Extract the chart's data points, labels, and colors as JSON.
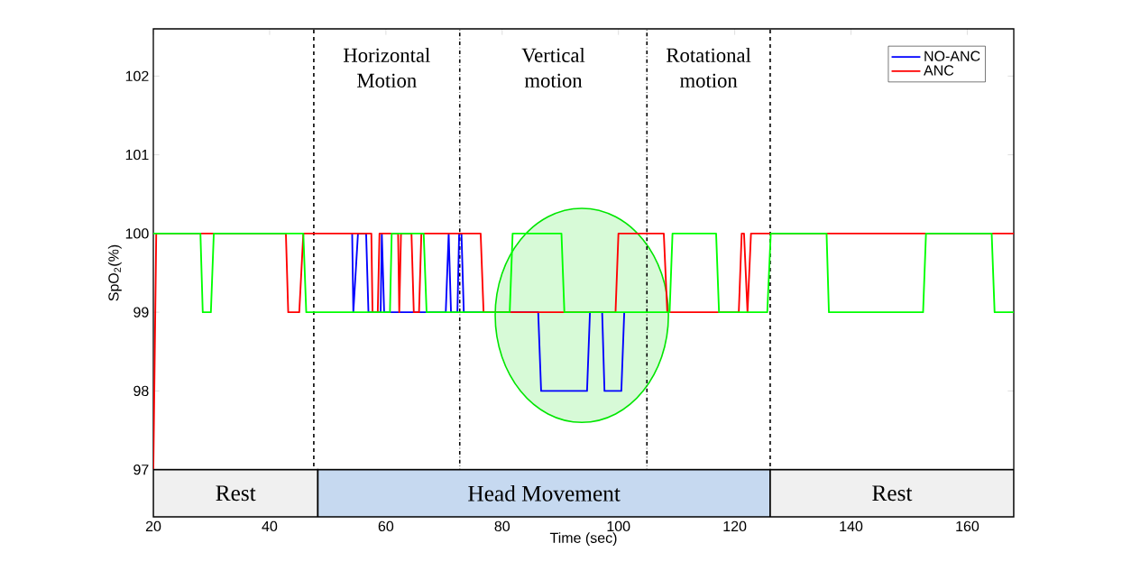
{
  "chart_data": {
    "type": "line",
    "xlabel": "Time (sec)",
    "ylabel": "SpO$_{2}$(%)",
    "xlim": [
      20,
      168
    ],
    "ylim": [
      96.4,
      102.6
    ],
    "xticks": [
      20,
      40,
      60,
      80,
      100,
      120,
      140,
      160
    ],
    "yticks": [
      97,
      98,
      99,
      100,
      101,
      102
    ],
    "grid": false,
    "legend": "top right",
    "marker": "none",
    "line_style": "solid",
    "series": [
      {
        "name": "NO-ANC",
        "color": "#0000ff",
        "x": [
          54.2,
          54.4,
          55.2,
          56.6,
          57.0,
          59.1,
          59.3,
          59.7,
          70.3,
          70.8,
          71.2,
          72.3,
          72.6,
          73.0,
          73.4,
          86.2,
          86.7,
          94.6,
          95.1,
          97.2,
          97.6,
          100.5,
          101.0
        ],
        "values": [
          100,
          99,
          100,
          100,
          99,
          99,
          100,
          99,
          99,
          100,
          99,
          99,
          100,
          100,
          99,
          99,
          98,
          98,
          99,
          99,
          98,
          98,
          99
        ]
      },
      {
        "name": "ANC",
        "color": "#ff0000",
        "x": [
          20,
          20.5,
          42.8,
          43.2,
          45.1,
          45.8,
          57.5,
          57.7,
          58.6,
          58.9,
          62.1,
          62.3,
          62.6,
          64.4,
          64.8,
          65.7,
          66.1,
          76.3,
          76.8,
          99.5,
          100.0,
          107.8,
          108.4,
          120.7,
          121.2,
          121.6,
          122.2,
          122.8,
          168
        ],
        "values": [
          97,
          100,
          100,
          99,
          99,
          100,
          100,
          99,
          99,
          100,
          100,
          99,
          100,
          100,
          99,
          99,
          100,
          100,
          99,
          99,
          100,
          100,
          99,
          99,
          100,
          100,
          99,
          100,
          100
        ]
      },
      {
        "color": "#00ff00",
        "x": [
          20,
          28.1,
          28.5,
          29.9,
          30.4,
          45.8,
          46.3,
          60.7,
          61.0,
          66.5,
          67.0,
          81.3,
          81.8,
          90.2,
          90.7,
          108.8,
          109.3,
          116.8,
          117.3,
          125.6,
          126.2,
          135.8,
          136.2,
          152.4,
          152.9,
          164.2,
          164.7,
          168
        ],
        "values": [
          100,
          100,
          99,
          99,
          100,
          100,
          99,
          99,
          100,
          100,
          99,
          99,
          100,
          100,
          99,
          99,
          100,
          100,
          99,
          99,
          100,
          100,
          99,
          99,
          100,
          100,
          99,
          99
        ]
      }
    ],
    "ref_lines": [
      {
        "axis": "x",
        "value": 47.6,
        "line_style": "dashed",
        "color": "#000000"
      },
      {
        "axis": "x",
        "value": 72.7,
        "line_style": "dashdot",
        "color": "#000000"
      },
      {
        "axis": "x",
        "value": 104.9,
        "line_style": "dashdot",
        "color": "#000000"
      },
      {
        "axis": "x",
        "value": 126.1,
        "line_style": "dashed",
        "color": "#000000"
      }
    ],
    "bands": [
      {
        "axis": "x",
        "from": 20,
        "to": 48.3,
        "label": "Rest",
        "color": "#f0f0f0"
      },
      {
        "axis": "x",
        "from": 48.3,
        "to": 126.1,
        "label": "Head Movement",
        "color": "#c6d9f0"
      },
      {
        "axis": "x",
        "from": 126.1,
        "to": 168,
        "label": "Rest",
        "color": "#f0f0f0"
      }
    ],
    "annotations": [
      "Horizontal Motion",
      "Vertical motion",
      "Rotational motion"
    ]
  }
}
